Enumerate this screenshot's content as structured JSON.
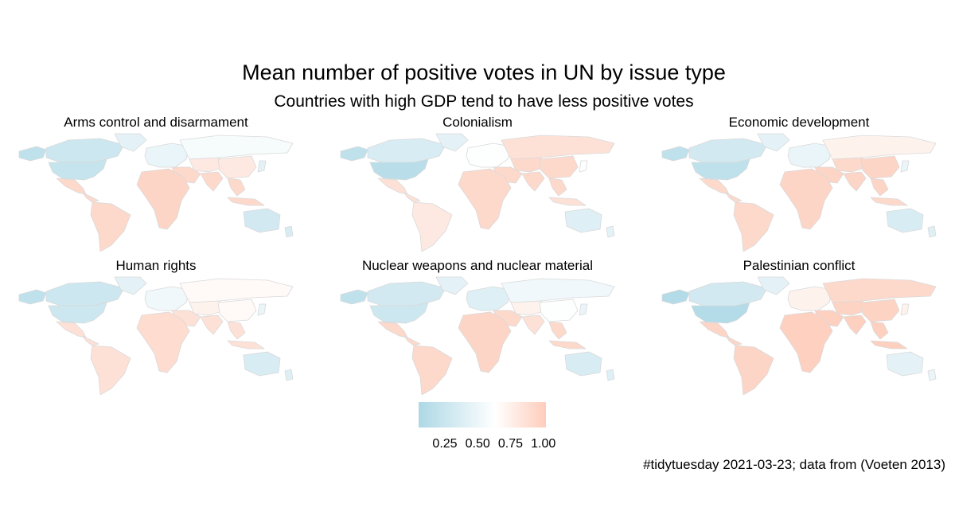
{
  "title": "Mean number of positive votes in UN by issue type",
  "subtitle": "Countries with high GDP tend to have less positive votes",
  "caption": "#tidytuesday 2021-03-23; data from (Voeten 2013)",
  "colors": {
    "low": "#ADD8E6",
    "mid": "#FFFFFF",
    "high": "#FDCDBB",
    "border": "#D9D9D9",
    "missing": "#EEEEEE"
  },
  "legend": {
    "ticks": [
      "0.25",
      "0.50",
      "0.75",
      "1.00"
    ],
    "tick_values": [
      0.25,
      0.5,
      0.75,
      1.0
    ],
    "min": 0.05,
    "max": 1.02
  },
  "panels": [
    {
      "label": "Arms control and disarmament",
      "values": {
        "alaska": 0.2,
        "canada": 0.3,
        "greenland": 0.5,
        "usa": 0.25,
        "mexico": 0.95,
        "central": 0.95,
        "south_america": 0.95,
        "europe": 0.55,
        "russia": 0.65,
        "middle_east": 0.95,
        "africa": 0.97,
        "central_asia": 0.85,
        "south_asia": 0.95,
        "china": 0.85,
        "se_asia": 0.95,
        "japan": 0.5,
        "indonesia": 0.95,
        "australia": 0.35,
        "nz": 0.4
      }
    },
    {
      "label": "Colonialism",
      "values": {
        "alaska": 0.2,
        "canada": 0.4,
        "greenland": 0.5,
        "usa": 0.15,
        "mexico": 0.9,
        "central": 0.9,
        "south_america": 0.85,
        "europe": 0.7,
        "russia": 0.9,
        "middle_east": 0.95,
        "africa": 0.95,
        "central_asia": 0.95,
        "south_asia": 0.95,
        "china": 0.95,
        "se_asia": 0.95,
        "japan": 0.7,
        "indonesia": 0.9,
        "australia": 0.45,
        "nz": 0.5
      }
    },
    {
      "label": "Economic development",
      "values": {
        "alaska": 0.2,
        "canada": 0.35,
        "greenland": 0.5,
        "usa": 0.2,
        "mexico": 0.95,
        "central": 0.95,
        "south_america": 0.95,
        "europe": 0.55,
        "russia": 0.8,
        "middle_east": 0.97,
        "africa": 0.97,
        "central_asia": 0.95,
        "south_asia": 0.97,
        "china": 0.97,
        "se_asia": 0.97,
        "japan": 0.55,
        "indonesia": 0.95,
        "australia": 0.4,
        "nz": 0.45
      }
    },
    {
      "label": "Human rights",
      "values": {
        "alaska": 0.2,
        "canada": 0.3,
        "greenland": 0.5,
        "usa": 0.3,
        "mexico": 0.9,
        "central": 0.9,
        "south_america": 0.9,
        "europe": 0.6,
        "russia": 0.75,
        "middle_east": 0.9,
        "africa": 0.93,
        "central_asia": 0.8,
        "south_asia": 0.9,
        "china": 0.75,
        "se_asia": 0.9,
        "japan": 0.55,
        "indonesia": 0.9,
        "australia": 0.4,
        "nz": 0.45
      }
    },
    {
      "label": "Nuclear weapons and nuclear material",
      "values": {
        "alaska": 0.2,
        "canada": 0.35,
        "greenland": 0.5,
        "usa": 0.3,
        "mexico": 0.95,
        "central": 0.95,
        "south_america": 0.95,
        "europe": 0.45,
        "russia": 0.6,
        "middle_east": 0.95,
        "africa": 0.97,
        "central_asia": 0.8,
        "south_asia": 0.9,
        "china": 0.7,
        "se_asia": 0.95,
        "japan": 0.55,
        "indonesia": 0.95,
        "australia": 0.4,
        "nz": 0.45
      }
    },
    {
      "label": "Palestinian conflict",
      "values": {
        "alaska": 0.1,
        "canada": 0.35,
        "greenland": 0.5,
        "usa": 0.1,
        "mexico": 0.97,
        "central": 0.97,
        "south_america": 0.97,
        "europe": 0.8,
        "russia": 0.95,
        "middle_east": 1.0,
        "africa": 1.0,
        "central_asia": 0.98,
        "south_asia": 1.0,
        "china": 0.98,
        "se_asia": 1.0,
        "japan": 0.8,
        "indonesia": 1.0,
        "australia": 0.5,
        "nz": 0.55
      }
    }
  ]
}
